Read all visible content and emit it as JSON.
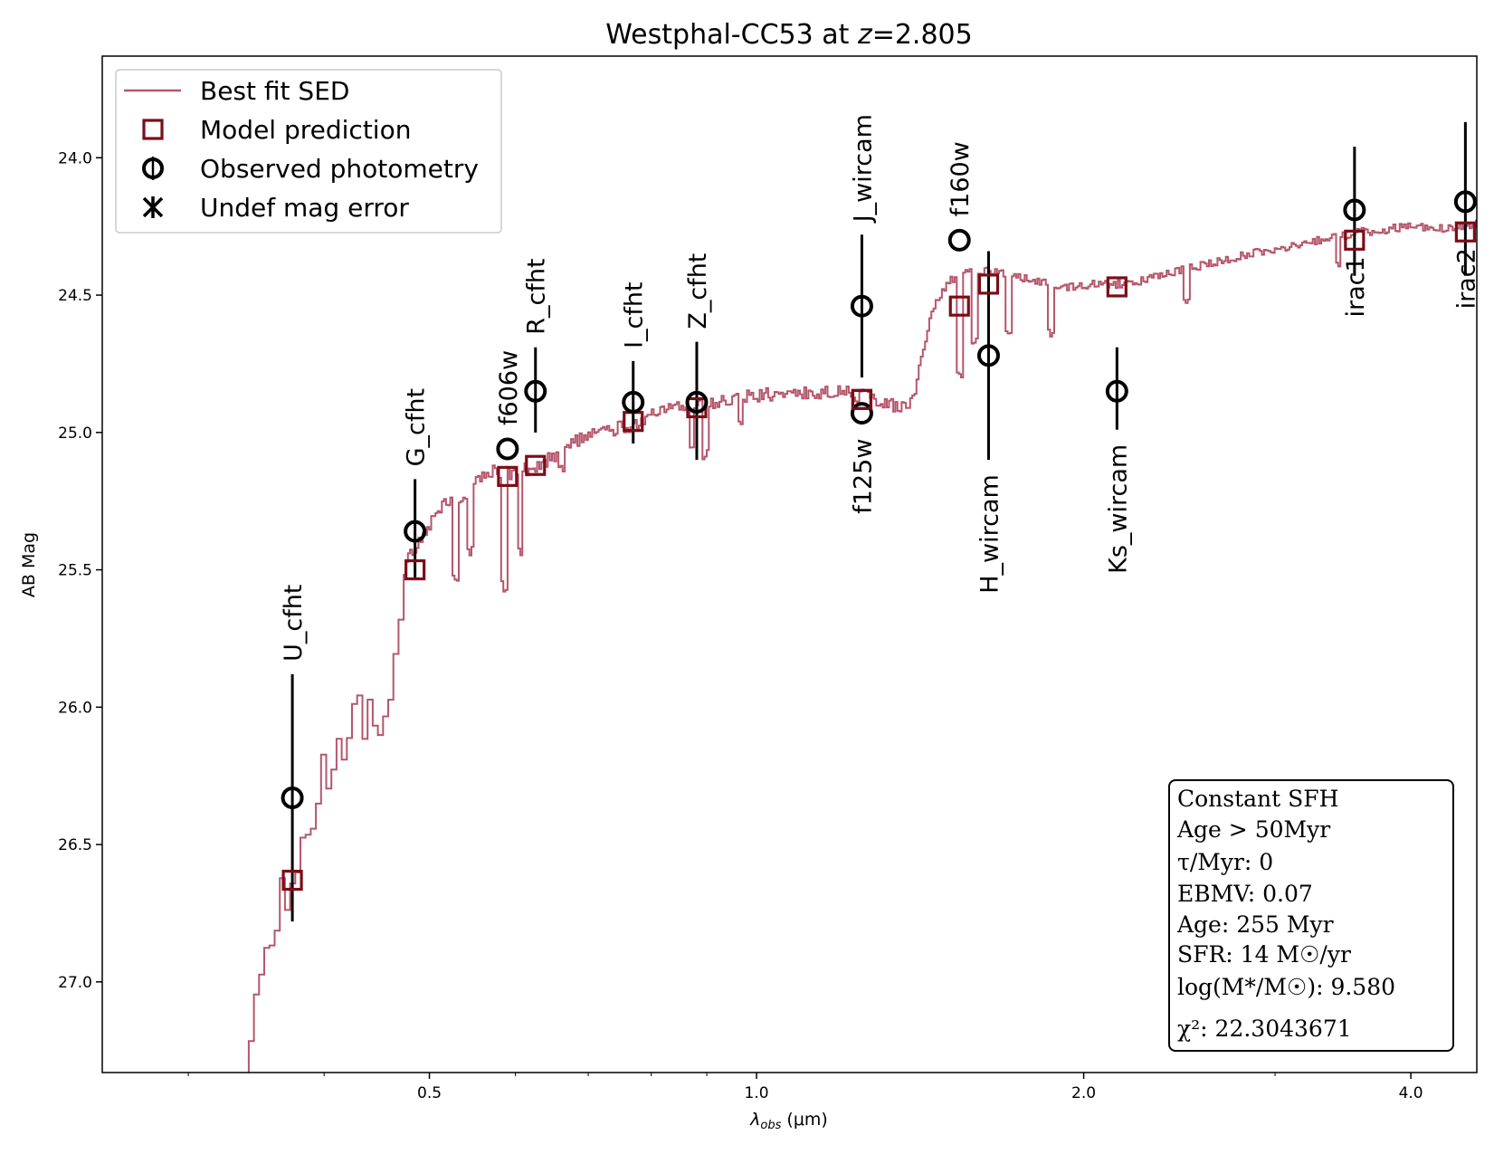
{
  "chart_data": {
    "type": "scatter",
    "title": "Westphal-CC53 at z=2.805",
    "title_parts": {
      "prefix": "Westphal-CC53 at ",
      "var": "z",
      "suffix": "=2.805"
    },
    "xlabel": "λobs (μm)",
    "xlabel_parts": {
      "sym": "λ",
      "sub": "obs",
      "rest": " (μm)"
    },
    "ylabel": "AB Mag",
    "x_scale": "log",
    "y_inverted": true,
    "xlim": [
      0.25,
      4.6
    ],
    "ylim": [
      27.33,
      23.63
    ],
    "x_ticks": [
      {
        "value": 0.5,
        "label": "0.5"
      },
      {
        "value": 1.0,
        "label": "1.0"
      },
      {
        "value": 2.0,
        "label": "2.0"
      },
      {
        "value": 4.0,
        "label": "4.0"
      }
    ],
    "y_ticks": [
      {
        "value": 24.0,
        "label": "24.0"
      },
      {
        "value": 24.5,
        "label": "24.5"
      },
      {
        "value": 25.0,
        "label": "25.0"
      },
      {
        "value": 25.5,
        "label": "25.5"
      },
      {
        "value": 26.0,
        "label": "26.0"
      },
      {
        "value": 26.5,
        "label": "26.5"
      },
      {
        "value": 27.0,
        "label": "27.0"
      }
    ],
    "legend": {
      "placement": "upper-left",
      "entries": [
        {
          "kind": "line",
          "label": "Best fit SED"
        },
        {
          "kind": "square",
          "label": "Model prediction"
        },
        {
          "kind": "circle",
          "label": "Observed photometry"
        },
        {
          "kind": "cross",
          "label": "Undef mag error"
        }
      ]
    },
    "colors": {
      "sed": "#b5566b",
      "model": "#7a0e18",
      "observed": "#000000"
    },
    "filters": [
      {
        "name": "U_cfht",
        "wave": 0.374,
        "obs": 26.33,
        "err_lo": 26.78,
        "err_hi": 25.88,
        "model": 26.63,
        "label_pos": "above"
      },
      {
        "name": "G_cfht",
        "wave": 0.485,
        "obs": 25.36,
        "err_lo": 25.53,
        "err_hi": 25.17,
        "model": 25.5,
        "label_pos": "above"
      },
      {
        "name": "f606w",
        "wave": 0.59,
        "obs": 25.06,
        "err_lo": 25.06,
        "err_hi": 25.06,
        "model": 25.16,
        "label_pos": "above"
      },
      {
        "name": "R_cfht",
        "wave": 0.626,
        "obs": 24.85,
        "err_lo": 25.0,
        "err_hi": 24.69,
        "model": 25.12,
        "label_pos": "above"
      },
      {
        "name": "I_cfht",
        "wave": 0.77,
        "obs": 24.89,
        "err_lo": 25.04,
        "err_hi": 24.74,
        "model": 24.96,
        "label_pos": "above"
      },
      {
        "name": "Z_cfht",
        "wave": 0.881,
        "obs": 24.89,
        "err_lo": 25.1,
        "err_hi": 24.67,
        "model": 24.91,
        "label_pos": "above"
      },
      {
        "name": "f125w",
        "wave": 1.25,
        "obs": 24.93,
        "err_lo": 24.93,
        "err_hi": 24.93,
        "model": 24.88,
        "label_pos": "below"
      },
      {
        "name": "J_wircam",
        "wave": 1.25,
        "obs": 24.54,
        "err_lo": 24.8,
        "err_hi": 24.28,
        "model": 24.88,
        "label_pos": "above"
      },
      {
        "name": "f160w",
        "wave": 1.537,
        "obs": 24.3,
        "err_lo": 24.3,
        "err_hi": 24.3,
        "model": 24.54,
        "label_pos": "above"
      },
      {
        "name": "H_wircam",
        "wave": 1.635,
        "obs": 24.72,
        "err_lo": 25.1,
        "err_hi": 24.34,
        "model": 24.46,
        "label_pos": "below"
      },
      {
        "name": "Ks_wircam",
        "wave": 2.146,
        "obs": 24.85,
        "err_lo": 24.99,
        "err_hi": 24.69,
        "model": 24.47,
        "label_pos": "below"
      },
      {
        "name": "irac1",
        "wave": 3.55,
        "obs": 24.19,
        "err_lo": 24.43,
        "err_hi": 23.96,
        "model": 24.3,
        "label_pos": "inside"
      },
      {
        "name": "irac2",
        "wave": 4.49,
        "obs": 24.16,
        "err_lo": 24.43,
        "err_hi": 23.87,
        "model": 24.27,
        "label_pos": "inside"
      }
    ],
    "sed_anchors": [
      [
        0.33,
        27.6
      ],
      [
        0.345,
        26.95
      ],
      [
        0.355,
        26.82
      ],
      [
        0.365,
        26.68
      ],
      [
        0.378,
        26.52
      ],
      [
        0.392,
        26.32
      ],
      [
        0.405,
        26.16
      ],
      [
        0.42,
        26.08
      ],
      [
        0.44,
        26.03
      ],
      [
        0.452,
        26.16
      ],
      [
        0.462,
        25.75
      ],
      [
        0.476,
        25.46
      ],
      [
        0.49,
        25.39
      ],
      [
        0.51,
        25.27
      ],
      [
        0.54,
        25.23
      ],
      [
        0.56,
        25.14
      ],
      [
        0.6,
        25.15
      ],
      [
        0.64,
        25.1
      ],
      [
        0.68,
        25.03
      ],
      [
        0.72,
        25.0
      ],
      [
        0.77,
        24.97
      ],
      [
        0.82,
        24.92
      ],
      [
        0.88,
        24.9
      ],
      [
        0.95,
        24.88
      ],
      [
        1.02,
        24.86
      ],
      [
        1.1,
        24.86
      ],
      [
        1.2,
        24.85
      ],
      [
        1.28,
        24.88
      ],
      [
        1.38,
        24.92
      ],
      [
        1.4,
        24.82
      ],
      [
        1.45,
        24.55
      ],
      [
        1.5,
        24.45
      ],
      [
        1.56,
        24.42
      ],
      [
        1.64,
        24.41
      ],
      [
        1.76,
        24.44
      ],
      [
        1.9,
        24.47
      ],
      [
        2.05,
        24.46
      ],
      [
        2.2,
        24.46
      ],
      [
        2.4,
        24.42
      ],
      [
        2.7,
        24.37
      ],
      [
        3.0,
        24.33
      ],
      [
        3.3,
        24.3
      ],
      [
        3.6,
        24.27
      ],
      [
        4.0,
        24.25
      ],
      [
        4.3,
        24.26
      ],
      [
        4.6,
        24.24
      ]
    ],
    "sed_features": [
      {
        "wave": 0.468,
        "depth": 0.08
      },
      {
        "wave": 0.528,
        "depth": 0.28
      },
      {
        "wave": 0.545,
        "depth": 0.22
      },
      {
        "wave": 0.585,
        "depth": 0.42
      },
      {
        "wave": 0.605,
        "depth": 0.28
      },
      {
        "wave": 0.66,
        "depth": 0.06
      },
      {
        "wave": 0.87,
        "depth": 0.16
      },
      {
        "wave": 0.895,
        "depth": 0.18
      },
      {
        "wave": 0.965,
        "depth": 0.08
      },
      {
        "wave": 1.535,
        "depth": 0.36
      },
      {
        "wave": 1.585,
        "depth": 0.25
      },
      {
        "wave": 1.7,
        "depth": 0.22
      },
      {
        "wave": 1.86,
        "depth": 0.18
      },
      {
        "wave": 2.48,
        "depth": 0.12
      },
      {
        "wave": 3.42,
        "depth": 0.1
      }
    ],
    "info_box": [
      {
        "key": "sfh",
        "text": "Constant SFH"
      },
      {
        "key": "age_limit",
        "text": "Age > 50Myr"
      },
      {
        "key": "tau",
        "text": "τ/Myr: 0"
      },
      {
        "key": "ebmv",
        "text": "EBMV: 0.07"
      },
      {
        "key": "age",
        "text": "Age: 255 Myr"
      },
      {
        "key": "sfr",
        "text": "SFR: 14 M☉/yr"
      },
      {
        "key": "mass",
        "text": "log(M*/M☉): 9.580"
      },
      {
        "key": "chi2",
        "text": "χ²: 22.3043671"
      }
    ]
  }
}
